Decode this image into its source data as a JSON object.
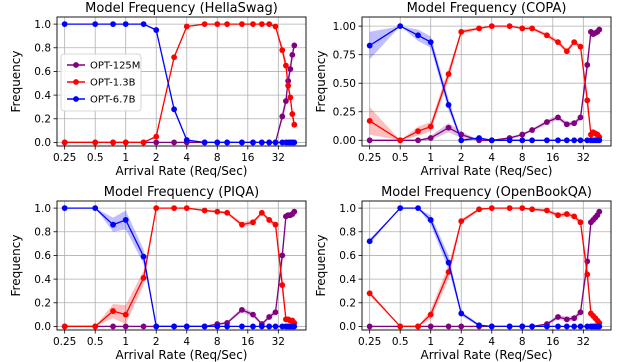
{
  "chart_data": [
    {
      "type": "line",
      "title": "Model Frequency (HellaSwag)",
      "xlabel": "Arrival Rate (Req/Sec)",
      "ylabel": "Frequency",
      "xscale": "log2",
      "xlim": [
        0.21,
        60
      ],
      "ylim": [
        -0.03,
        1.06
      ],
      "xticks": [
        0.25,
        0.5,
        1,
        2,
        4,
        8,
        16,
        32
      ],
      "xtick_labels": [
        "0.25",
        "0.5",
        "1",
        "2",
        "4",
        "8",
        "16",
        "32"
      ],
      "yticks": [
        0.0,
        0.2,
        0.4,
        0.6,
        0.8,
        1.0
      ],
      "ytick_labels": [
        "0.0",
        "0.2",
        "0.4",
        "0.6",
        "0.8",
        "1.0"
      ],
      "grid": true,
      "legend": "left",
      "series": [
        {
          "name": "OPT-125M",
          "color": "#800080",
          "x": [
            0.25,
            0.5,
            0.75,
            1.0,
            1.5,
            2.0,
            3.0,
            4.0,
            6.0,
            8.0,
            10,
            14,
            18,
            22,
            26,
            30,
            35,
            38,
            40,
            42,
            44,
            46
          ],
          "y": [
            0.0,
            0.0,
            0.0,
            0.0,
            0.0,
            0.0,
            0.0,
            0.0,
            0.0,
            0.0,
            0.0,
            0.0,
            0.0,
            0.0,
            0.0,
            0.0,
            0.22,
            0.35,
            0.52,
            0.62,
            0.74,
            0.82
          ],
          "band": [
            0.0,
            0.0,
            0.0,
            0.0,
            0.0,
            0.0,
            0.0,
            0.0,
            0.0,
            0.0,
            0.0,
            0.0,
            0.0,
            0.0,
            0.0,
            0.0,
            0.04,
            0.05,
            0.05,
            0.05,
            0.05,
            0.04
          ]
        },
        {
          "name": "OPT-1.3B",
          "color": "#ff0000",
          "x": [
            0.25,
            0.5,
            0.75,
            1.0,
            1.5,
            2.0,
            3.0,
            4.0,
            6.0,
            8.0,
            10,
            14,
            18,
            22,
            26,
            30,
            35,
            38,
            40,
            42,
            44,
            46
          ],
          "y": [
            0.0,
            0.0,
            0.0,
            0.0,
            0.0,
            0.05,
            0.72,
            0.98,
            1.0,
            1.0,
            1.0,
            1.0,
            1.0,
            1.0,
            1.0,
            0.98,
            0.78,
            0.65,
            0.48,
            0.38,
            0.24,
            0.15
          ],
          "band": [
            0.0,
            0.0,
            0.0,
            0.0,
            0.0,
            0.01,
            0.02,
            0.0,
            0.0,
            0.0,
            0.0,
            0.0,
            0.0,
            0.0,
            0.0,
            0.0,
            0.04,
            0.05,
            0.05,
            0.05,
            0.05,
            0.04
          ]
        },
        {
          "name": "OPT-6.7B",
          "color": "#0000ff",
          "x": [
            0.25,
            0.5,
            0.75,
            1.0,
            1.5,
            2.0,
            3.0,
            4.0,
            6.0,
            8.0,
            10,
            14,
            18,
            22,
            26,
            30,
            35,
            38,
            40,
            42,
            44,
            46
          ],
          "y": [
            1.0,
            1.0,
            1.0,
            1.0,
            1.0,
            0.95,
            0.28,
            0.02,
            0.0,
            0.0,
            0.0,
            0.0,
            0.0,
            0.0,
            0.0,
            0.0,
            0.0,
            0.0,
            0.0,
            0.0,
            0.0,
            0.0
          ],
          "band": [
            0.0,
            0.0,
            0.0,
            0.0,
            0.0,
            0.01,
            0.02,
            0.01,
            0.0,
            0.0,
            0.0,
            0.0,
            0.0,
            0.0,
            0.0,
            0.0,
            0.0,
            0.0,
            0.0,
            0.0,
            0.0,
            0.0
          ]
        }
      ]
    },
    {
      "type": "line",
      "title": "Model Frequency (COPA)",
      "xlabel": "Arrival Rate (Req/Sec)",
      "ylabel": "Frequency",
      "xscale": "log2",
      "xlim": [
        0.21,
        60
      ],
      "ylim": [
        -0.05,
        1.08
      ],
      "xticks": [
        0.25,
        0.5,
        1,
        2,
        4,
        8,
        16,
        32
      ],
      "xtick_labels": [
        "0.25",
        "0.5",
        "1",
        "2",
        "4",
        "8",
        "16",
        "32"
      ],
      "yticks": [
        0.0,
        0.25,
        0.5,
        0.75,
        1.0
      ],
      "ytick_labels": [
        "0.00",
        "0.25",
        "0.50",
        "0.75",
        "1.00"
      ],
      "grid": true,
      "series": [
        {
          "name": "OPT-125M",
          "color": "#800080",
          "x": [
            0.25,
            0.5,
            0.75,
            1.0,
            1.5,
            2.0,
            3.0,
            4.0,
            6.0,
            8.0,
            10,
            14,
            18,
            22,
            26,
            30,
            35,
            38,
            40,
            42,
            44,
            46
          ],
          "y": [
            0.0,
            0.0,
            0.0,
            0.02,
            0.11,
            0.05,
            0.0,
            0.0,
            0.02,
            0.05,
            0.09,
            0.16,
            0.2,
            0.14,
            0.15,
            0.2,
            0.66,
            0.95,
            0.93,
            0.94,
            0.95,
            0.97
          ],
          "band": [
            0.0,
            0.0,
            0.0,
            0.02,
            0.04,
            0.03,
            0.0,
            0.0,
            0.01,
            0.01,
            0.01,
            0.02,
            0.02,
            0.02,
            0.02,
            0.02,
            0.08,
            0.03,
            0.02,
            0.02,
            0.02,
            0.02
          ]
        },
        {
          "name": "OPT-1.3B",
          "color": "#ff0000",
          "x": [
            0.25,
            0.5,
            0.75,
            1.0,
            1.5,
            2.0,
            3.0,
            4.0,
            6.0,
            8.0,
            10,
            14,
            18,
            22,
            26,
            30,
            35,
            38,
            40,
            42,
            44,
            46
          ],
          "y": [
            0.17,
            0.0,
            0.08,
            0.12,
            0.58,
            0.95,
            0.98,
            1.0,
            1.0,
            0.98,
            0.98,
            0.92,
            0.86,
            0.78,
            0.86,
            0.82,
            0.35,
            0.05,
            0.07,
            0.06,
            0.05,
            0.03
          ],
          "band": [
            0.12,
            0.0,
            0.04,
            0.04,
            0.05,
            0.02,
            0.01,
            0.0,
            0.0,
            0.01,
            0.01,
            0.02,
            0.02,
            0.02,
            0.02,
            0.02,
            0.08,
            0.03,
            0.02,
            0.02,
            0.02,
            0.02
          ]
        },
        {
          "name": "OPT-6.7B",
          "color": "#0000ff",
          "x": [
            0.25,
            0.5,
            0.75,
            1.0,
            1.5,
            2.0,
            3.0,
            4.0,
            6.0,
            8.0,
            10,
            14,
            18,
            22,
            26,
            30,
            35,
            38,
            40,
            42,
            44,
            46
          ],
          "y": [
            0.83,
            1.0,
            0.92,
            0.86,
            0.31,
            0.0,
            0.02,
            0.0,
            0.0,
            0.0,
            0.0,
            0.0,
            0.0,
            0.0,
            0.0,
            0.0,
            0.0,
            0.0,
            0.0,
            0.0,
            0.0,
            0.0
          ],
          "band": [
            0.12,
            0.0,
            0.05,
            0.05,
            0.05,
            0.01,
            0.01,
            0.0,
            0.0,
            0.0,
            0.0,
            0.0,
            0.0,
            0.0,
            0.0,
            0.0,
            0.0,
            0.0,
            0.0,
            0.0,
            0.0,
            0.0
          ]
        }
      ]
    },
    {
      "type": "line",
      "title": "Model Frequency (PIQA)",
      "xlabel": "Arrival Rate (Req/Sec)",
      "ylabel": "Frequency",
      "xscale": "log2",
      "xlim": [
        0.21,
        60
      ],
      "ylim": [
        -0.03,
        1.06
      ],
      "xticks": [
        0.25,
        0.5,
        1,
        2,
        4,
        8,
        16,
        32
      ],
      "xtick_labels": [
        "0.25",
        "0.5",
        "1",
        "2",
        "4",
        "8",
        "16",
        "32"
      ],
      "yticks": [
        0.0,
        0.2,
        0.4,
        0.6,
        0.8,
        1.0
      ],
      "ytick_labels": [
        "0.0",
        "0.2",
        "0.4",
        "0.6",
        "0.8",
        "1.0"
      ],
      "grid": true,
      "series": [
        {
          "name": "OPT-125M",
          "color": "#800080",
          "x": [
            0.25,
            0.5,
            0.75,
            1.0,
            1.5,
            2.0,
            3.0,
            4.0,
            6.0,
            8.0,
            10,
            14,
            18,
            22,
            26,
            30,
            35,
            38,
            40,
            42,
            44,
            46
          ],
          "y": [
            0.0,
            0.0,
            0.0,
            0.0,
            0.0,
            0.0,
            0.0,
            0.0,
            0.0,
            0.02,
            0.03,
            0.14,
            0.1,
            0.02,
            0.08,
            0.12,
            0.6,
            0.93,
            0.94,
            0.94,
            0.95,
            0.97
          ],
          "band": [
            0.0,
            0.0,
            0.0,
            0.0,
            0.0,
            0.0,
            0.0,
            0.0,
            0.0,
            0.01,
            0.01,
            0.02,
            0.02,
            0.01,
            0.02,
            0.02,
            0.08,
            0.03,
            0.02,
            0.02,
            0.02,
            0.02
          ]
        },
        {
          "name": "OPT-1.3B",
          "color": "#ff0000",
          "x": [
            0.25,
            0.5,
            0.75,
            1.0,
            1.5,
            2.0,
            3.0,
            4.0,
            6.0,
            8.0,
            10,
            14,
            18,
            22,
            26,
            30,
            35,
            38,
            40,
            42,
            44,
            46
          ],
          "y": [
            0.0,
            0.0,
            0.13,
            0.1,
            0.41,
            1.0,
            1.0,
            1.0,
            0.98,
            0.97,
            0.96,
            0.86,
            0.88,
            0.96,
            0.9,
            0.86,
            0.35,
            0.06,
            0.06,
            0.05,
            0.05,
            0.03
          ],
          "band": [
            0.0,
            0.0,
            0.06,
            0.08,
            0.06,
            0.0,
            0.0,
            0.0,
            0.01,
            0.01,
            0.01,
            0.02,
            0.02,
            0.01,
            0.02,
            0.02,
            0.08,
            0.03,
            0.02,
            0.02,
            0.02,
            0.02
          ]
        },
        {
          "name": "OPT-6.7B",
          "color": "#0000ff",
          "x": [
            0.25,
            0.5,
            0.75,
            1.0,
            1.5,
            2.0,
            3.0,
            4.0,
            6.0,
            8.0,
            10,
            14,
            18,
            22,
            26,
            30,
            35,
            38,
            40,
            42,
            44,
            46
          ],
          "y": [
            1.0,
            1.0,
            0.86,
            0.9,
            0.59,
            0.0,
            0.0,
            0.0,
            0.0,
            0.0,
            0.0,
            0.0,
            0.0,
            0.0,
            0.0,
            0.0,
            0.0,
            0.0,
            0.0,
            0.0,
            0.0,
            0.0
          ],
          "band": [
            0.0,
            0.0,
            0.06,
            0.08,
            0.06,
            0.0,
            0.0,
            0.0,
            0.0,
            0.0,
            0.0,
            0.0,
            0.0,
            0.0,
            0.0,
            0.0,
            0.0,
            0.0,
            0.0,
            0.0,
            0.0,
            0.0
          ]
        }
      ]
    },
    {
      "type": "line",
      "title": "Model Frequency (OpenBookQA)",
      "xlabel": "Arrival Rate (Req/Sec)",
      "ylabel": "Frequency",
      "xscale": "log2",
      "xlim": [
        0.21,
        60
      ],
      "ylim": [
        -0.03,
        1.06
      ],
      "xticks": [
        0.25,
        0.5,
        1,
        2,
        4,
        8,
        16,
        32
      ],
      "xtick_labels": [
        "0.25",
        "0.5",
        "1",
        "2",
        "4",
        "8",
        "16",
        "32"
      ],
      "yticks": [
        0.0,
        0.2,
        0.4,
        0.6,
        0.8,
        1.0
      ],
      "ytick_labels": [
        "0.0",
        "0.2",
        "0.4",
        "0.6",
        "0.8",
        "1.0"
      ],
      "grid": true,
      "series": [
        {
          "name": "OPT-125M",
          "color": "#800080",
          "x": [
            0.25,
            0.5,
            0.75,
            1.0,
            1.5,
            2.0,
            3.0,
            4.0,
            6.0,
            8.0,
            10,
            14,
            18,
            22,
            26,
            30,
            35,
            38,
            40,
            42,
            44,
            46
          ],
          "y": [
            0.0,
            0.0,
            0.0,
            0.0,
            0.0,
            0.0,
            0.0,
            0.0,
            0.0,
            0.0,
            0.0,
            0.02,
            0.08,
            0.06,
            0.07,
            0.12,
            0.55,
            0.88,
            0.9,
            0.92,
            0.94,
            0.97
          ],
          "band": [
            0.0,
            0.0,
            0.0,
            0.0,
            0.0,
            0.0,
            0.0,
            0.0,
            0.0,
            0.0,
            0.0,
            0.01,
            0.02,
            0.02,
            0.02,
            0.02,
            0.08,
            0.03,
            0.02,
            0.02,
            0.02,
            0.02
          ]
        },
        {
          "name": "OPT-1.3B",
          "color": "#ff0000",
          "x": [
            0.25,
            0.5,
            0.75,
            1.0,
            1.5,
            2.0,
            3.0,
            4.0,
            6.0,
            8.0,
            10,
            14,
            18,
            22,
            26,
            30,
            35,
            38,
            40,
            42,
            44,
            46
          ],
          "y": [
            0.28,
            0.0,
            0.0,
            0.1,
            0.46,
            0.89,
            0.99,
            1.0,
            1.0,
            1.0,
            0.99,
            0.98,
            0.94,
            0.95,
            0.93,
            0.88,
            0.44,
            0.11,
            0.09,
            0.07,
            0.05,
            0.03
          ],
          "band": [
            0.02,
            0.0,
            0.0,
            0.04,
            0.06,
            0.02,
            0.01,
            0.0,
            0.0,
            0.0,
            0.01,
            0.01,
            0.02,
            0.02,
            0.02,
            0.02,
            0.08,
            0.03,
            0.02,
            0.02,
            0.02,
            0.02
          ]
        },
        {
          "name": "OPT-6.7B",
          "color": "#0000ff",
          "x": [
            0.25,
            0.5,
            0.75,
            1.0,
            1.5,
            2.0,
            3.0,
            4.0,
            6.0,
            8.0,
            10,
            14,
            18,
            22,
            26,
            30,
            35,
            38,
            40,
            42,
            44,
            46
          ],
          "y": [
            0.72,
            1.0,
            1.0,
            0.9,
            0.54,
            0.11,
            0.01,
            0.0,
            0.0,
            0.0,
            0.0,
            0.0,
            0.0,
            0.0,
            0.0,
            0.0,
            0.0,
            0.0,
            0.0,
            0.0,
            0.0,
            0.0
          ],
          "band": [
            0.02,
            0.0,
            0.0,
            0.04,
            0.06,
            0.02,
            0.01,
            0.0,
            0.0,
            0.0,
            0.0,
            0.0,
            0.0,
            0.0,
            0.0,
            0.0,
            0.0,
            0.0,
            0.0,
            0.0,
            0.0,
            0.0
          ]
        }
      ]
    }
  ]
}
